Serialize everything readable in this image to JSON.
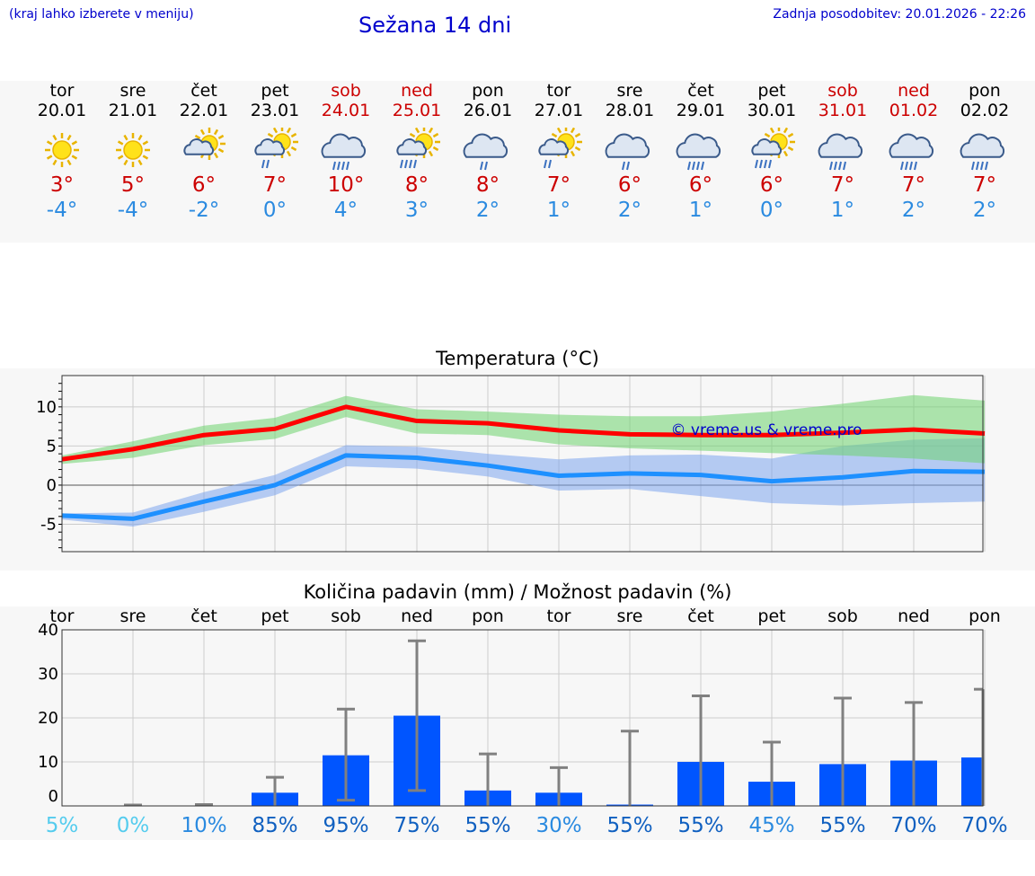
{
  "header": {
    "note": "(kraj lahko izberete v meniju)",
    "title": "Sežana 14 dni",
    "updated": "Zadnja posodobitev: 20.01.2026 - 22:26"
  },
  "colors": {
    "max": "#cc0000",
    "min": "#2a8ae0",
    "link": "#0000cc",
    "bar": "#0055ff"
  },
  "days": [
    {
      "name": "tor",
      "date": "20.01",
      "weekend": false,
      "icon": "sun-icon",
      "max": "3°",
      "min": "-4°"
    },
    {
      "name": "sre",
      "date": "21.01",
      "weekend": false,
      "icon": "sun-icon",
      "max": "5°",
      "min": "-4°"
    },
    {
      "name": "čet",
      "date": "22.01",
      "weekend": false,
      "icon": "partly-cloudy-icon",
      "max": "6°",
      "min": "-2°"
    },
    {
      "name": "pet",
      "date": "23.01",
      "weekend": false,
      "icon": "sun-cloud-rain-icon",
      "max": "7°",
      "min": "0°"
    },
    {
      "name": "sob",
      "date": "24.01",
      "weekend": true,
      "icon": "cloud-rain-icon",
      "max": "10°",
      "min": "4°"
    },
    {
      "name": "ned",
      "date": "25.01",
      "weekend": true,
      "icon": "sun-cloud-heavy-rain-icon",
      "max": "8°",
      "min": "3°"
    },
    {
      "name": "pon",
      "date": "26.01",
      "weekend": false,
      "icon": "cloud-light-rain-icon",
      "max": "8°",
      "min": "2°"
    },
    {
      "name": "tor",
      "date": "27.01",
      "weekend": false,
      "icon": "sun-cloud-light-rain-icon",
      "max": "7°",
      "min": "1°"
    },
    {
      "name": "sre",
      "date": "28.01",
      "weekend": false,
      "icon": "cloud-light-rain-icon",
      "max": "6°",
      "min": "2°"
    },
    {
      "name": "čet",
      "date": "29.01",
      "weekend": false,
      "icon": "cloud-rain-icon",
      "max": "6°",
      "min": "1°"
    },
    {
      "name": "pet",
      "date": "30.01",
      "weekend": false,
      "icon": "sun-cloud-heavy-rain-icon",
      "max": "6°",
      "min": "0°"
    },
    {
      "name": "sob",
      "date": "31.01",
      "weekend": true,
      "icon": "cloud-rain-icon",
      "max": "7°",
      "min": "1°"
    },
    {
      "name": "ned",
      "date": "01.02",
      "weekend": true,
      "icon": "cloud-rain-icon",
      "max": "7°",
      "min": "2°"
    },
    {
      "name": "pon",
      "date": "02.02",
      "weekend": false,
      "icon": "cloud-rain-icon",
      "max": "7°",
      "min": "2°"
    }
  ],
  "chart_data": [
    {
      "type": "line",
      "title": "Temperatura (°C)",
      "ylim": [
        -8.5,
        14
      ],
      "yticks": [
        -5,
        0,
        5,
        10
      ],
      "x": [
        0,
        1,
        2,
        3,
        4,
        5,
        6,
        7,
        8,
        9,
        10,
        11,
        12,
        13
      ],
      "series": [
        {
          "name": "max",
          "values": [
            3.3,
            4.6,
            6.4,
            7.2,
            10.0,
            8.2,
            7.9,
            7.0,
            6.5,
            6.4,
            6.4,
            6.7,
            7.1,
            6.6
          ],
          "band_low": [
            2.7,
            3.5,
            5.1,
            5.9,
            8.7,
            6.6,
            6.4,
            5.2,
            4.7,
            4.4,
            4.1,
            3.8,
            3.4,
            2.8
          ],
          "band_high": [
            3.8,
            5.6,
            7.6,
            8.6,
            11.4,
            9.7,
            9.4,
            9.0,
            8.8,
            8.8,
            9.4,
            10.4,
            11.5,
            10.8
          ]
        },
        {
          "name": "min",
          "values": [
            -3.9,
            -4.3,
            -2.1,
            0.0,
            3.8,
            3.5,
            2.5,
            1.2,
            1.5,
            1.3,
            0.5,
            1.0,
            1.8,
            1.7
          ],
          "band_low": [
            -4.4,
            -5.3,
            -3.4,
            -1.3,
            2.4,
            2.1,
            1.1,
            -0.7,
            -0.5,
            -1.4,
            -2.3,
            -2.6,
            -2.3,
            -2.1
          ],
          "band_high": [
            -3.6,
            -3.5,
            -0.9,
            1.3,
            5.1,
            4.9,
            4.0,
            3.3,
            3.8,
            3.9,
            3.4,
            5.0,
            5.8,
            6.0
          ]
        }
      ],
      "watermark": "© vreme.us & vreme.pro"
    },
    {
      "type": "bar",
      "title": "Količina padavin (mm) / Možnost padavin (%)",
      "ylim": [
        0,
        40
      ],
      "yticks": [
        0,
        10,
        20,
        30,
        40
      ],
      "categories": [
        "tor",
        "sre",
        "čet",
        "pet",
        "sob",
        "ned",
        "pon",
        "tor",
        "sre",
        "čet",
        "pet",
        "sob",
        "ned",
        "pon"
      ],
      "values": [
        0,
        0,
        0,
        3,
        11.5,
        20.5,
        3.5,
        3,
        0.3,
        10,
        5.5,
        9.5,
        10.3,
        11
      ],
      "err_low": [
        0,
        0,
        0,
        0,
        1.3,
        3.5,
        0,
        0,
        0,
        0,
        0,
        0,
        0,
        0
      ],
      "err_high": [
        0,
        0.2,
        0.3,
        6.5,
        22,
        37.5,
        11.8,
        8.7,
        17,
        25,
        14.5,
        24.5,
        23.5,
        26.5
      ],
      "chance": [
        "5%",
        "0%",
        "10%",
        "85%",
        "95%",
        "75%",
        "55%",
        "30%",
        "55%",
        "55%",
        "45%",
        "55%",
        "70%",
        "70%"
      ],
      "chance_colors": [
        "#55ccee",
        "#55ccee",
        "#2a8ae0",
        "#1060c0",
        "#1060c0",
        "#1060c0",
        "#1060c0",
        "#2a8ae0",
        "#1060c0",
        "#1060c0",
        "#2a8ae0",
        "#1060c0",
        "#1060c0",
        "#1060c0"
      ]
    }
  ]
}
